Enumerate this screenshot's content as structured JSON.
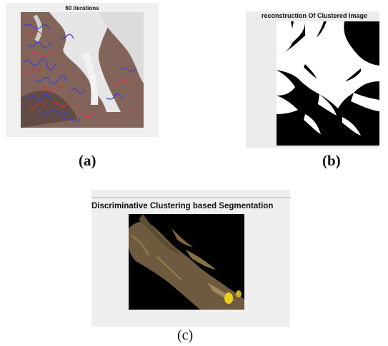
{
  "figure": {
    "panel_a": {
      "title": "60 iterations",
      "caption": "(a)"
    },
    "panel_b": {
      "title": "reconstruction Of Clustered Image",
      "caption": "(b)"
    },
    "panel_c": {
      "title": "Discriminative Clustering based Segmentation",
      "caption": "(c)"
    }
  },
  "colors": {
    "window_bg": "#f0f0f0",
    "contour_blue": "#3a3ee0",
    "contour_red": "#e03040",
    "tissue_brown": "#7a5a4e",
    "segment_black": "#000000",
    "segment_white": "#ffffff"
  }
}
